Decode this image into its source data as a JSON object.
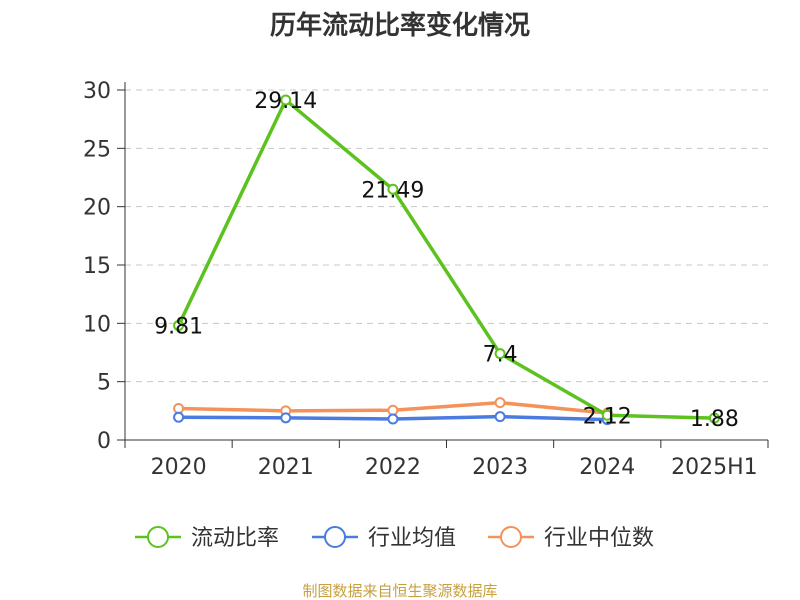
{
  "chart_data": {
    "type": "line",
    "title": "历年流动比率变化情况",
    "categories": [
      "2020",
      "2021",
      "2022",
      "2023",
      "2024",
      "2025H1"
    ],
    "ylim": [
      0,
      30
    ],
    "yticks": [
      0,
      5,
      10,
      15,
      20,
      25,
      30
    ],
    "grid": true,
    "legend_position": "bottom",
    "series": [
      {
        "name": "流动比率",
        "color": "#5cc21f",
        "values": [
          9.81,
          29.14,
          21.49,
          7.4,
          2.12,
          1.88
        ],
        "labels": [
          "9.81",
          "29.14",
          "21.49",
          "7.4",
          "2.12",
          "1.88"
        ]
      },
      {
        "name": "行业均值",
        "color": "#4a7be0",
        "values": [
          1.95,
          1.9,
          1.8,
          2.0,
          1.75,
          null
        ]
      },
      {
        "name": "行业中位数",
        "color": "#f5925a",
        "values": [
          2.7,
          2.5,
          2.55,
          3.2,
          2.3,
          null
        ]
      }
    ]
  },
  "footer": {
    "source": "制图数据来自恒生聚源数据库"
  }
}
